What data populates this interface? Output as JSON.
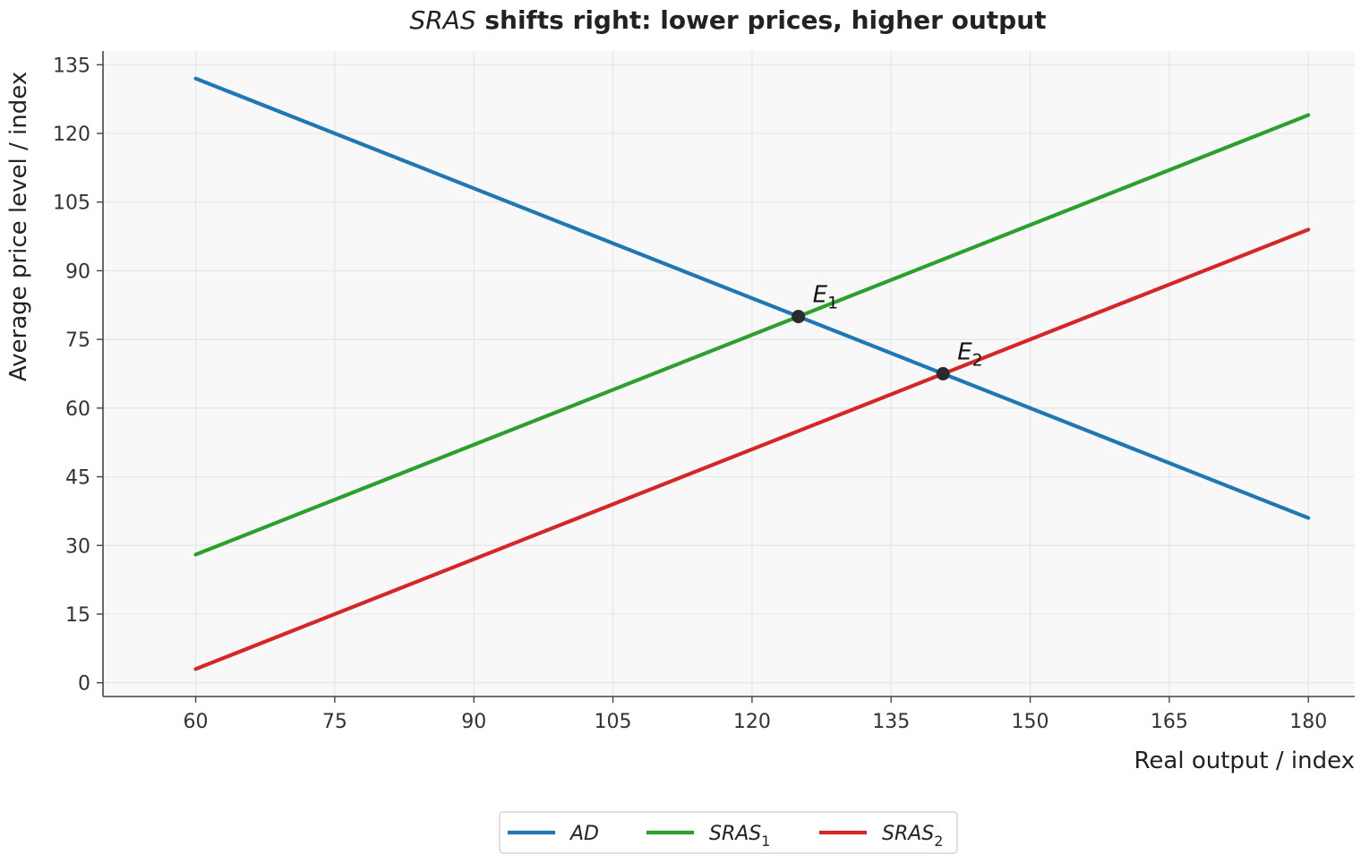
{
  "chart_data": {
    "type": "line",
    "title": {
      "italic": "SRAS",
      "bold": " shifts right: lower prices, higher output"
    },
    "xlabel": "Real output / index",
    "ylabel": "Average price level / index",
    "xlim": [
      50,
      185
    ],
    "ylim": [
      -3,
      138
    ],
    "xticks": [
      60,
      75,
      90,
      105,
      120,
      135,
      150,
      165,
      180
    ],
    "yticks": [
      0,
      15,
      30,
      45,
      60,
      75,
      90,
      105,
      120,
      135
    ],
    "grid": true,
    "legend_position": "bottom-center",
    "series": [
      {
        "name": "AD",
        "sub": "",
        "color": "#1f77b4",
        "x": [
          60,
          180
        ],
        "y": [
          132,
          36
        ]
      },
      {
        "name": "SRAS",
        "sub": "1",
        "color": "#2ca02c",
        "x": [
          60,
          180
        ],
        "y": [
          28,
          124
        ]
      },
      {
        "name": "SRAS",
        "sub": "2",
        "color": "#d62728",
        "x": [
          60,
          180
        ],
        "y": [
          3,
          99
        ]
      }
    ],
    "points": [
      {
        "label": "E",
        "sub": "1",
        "x": 125,
        "y": 80
      },
      {
        "label": "E",
        "sub": "2",
        "x": 140.6,
        "y": 67.5
      }
    ]
  }
}
